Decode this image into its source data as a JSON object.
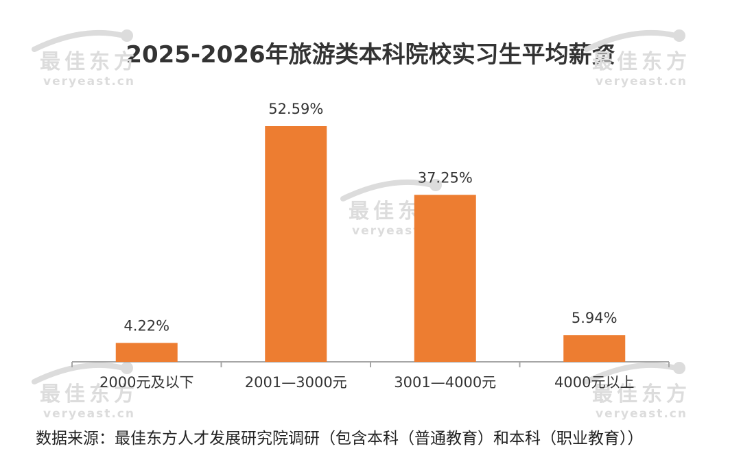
{
  "title": "2025-2026年旅游类本科院校实习生平均薪资",
  "source": "数据来源：最佳东方人才发展研究院调研（包含本科（普通教育）和本科（职业教育））",
  "watermark": {
    "cn": "最佳东方",
    "en": "veryeast.cn"
  },
  "colors": {
    "bar": "#ED7D31",
    "axis": "#A6A6A6",
    "text": "#333333",
    "watermark": "#DCDCDC"
  },
  "chart_data": {
    "type": "bar",
    "title": "2025-2026年旅游类本科院校实习生平均薪资",
    "categories": [
      "2000元及以下",
      "2001—3000元",
      "3001—4000元",
      "4000元以上"
    ],
    "values": [
      4.22,
      52.59,
      37.25,
      5.94
    ],
    "data_labels": [
      "4.22%",
      "52.59%",
      "37.25%",
      "5.94%"
    ],
    "ylim": [
      0,
      60
    ],
    "grid": false,
    "legend": "none"
  }
}
